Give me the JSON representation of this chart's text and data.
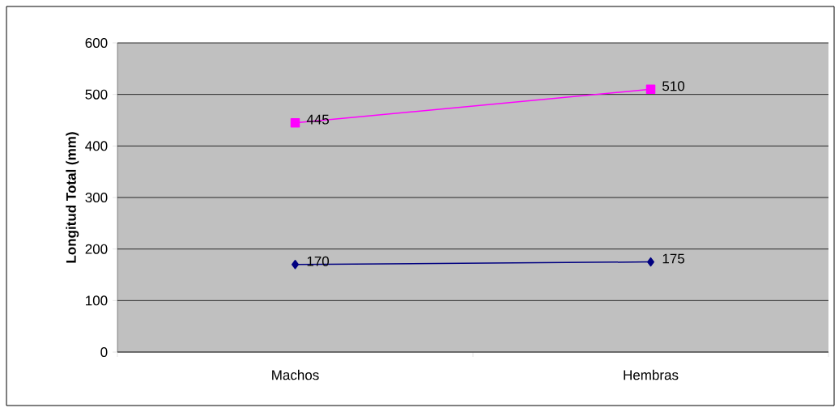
{
  "chart_data": {
    "type": "line",
    "ylabel": "Longitud Total (mm)",
    "categories": [
      "Machos",
      "Hembras"
    ],
    "series": [
      {
        "color": "#ff00ff",
        "marker": "square",
        "values": [
          445,
          510
        ]
      },
      {
        "color": "#000080",
        "marker": "diamond",
        "values": [
          170,
          175
        ]
      }
    ],
    "ylim": [
      0,
      600
    ],
    "yticks": [
      0,
      100,
      200,
      300,
      400,
      500,
      600
    ],
    "grid": "y",
    "data_labels": true
  }
}
